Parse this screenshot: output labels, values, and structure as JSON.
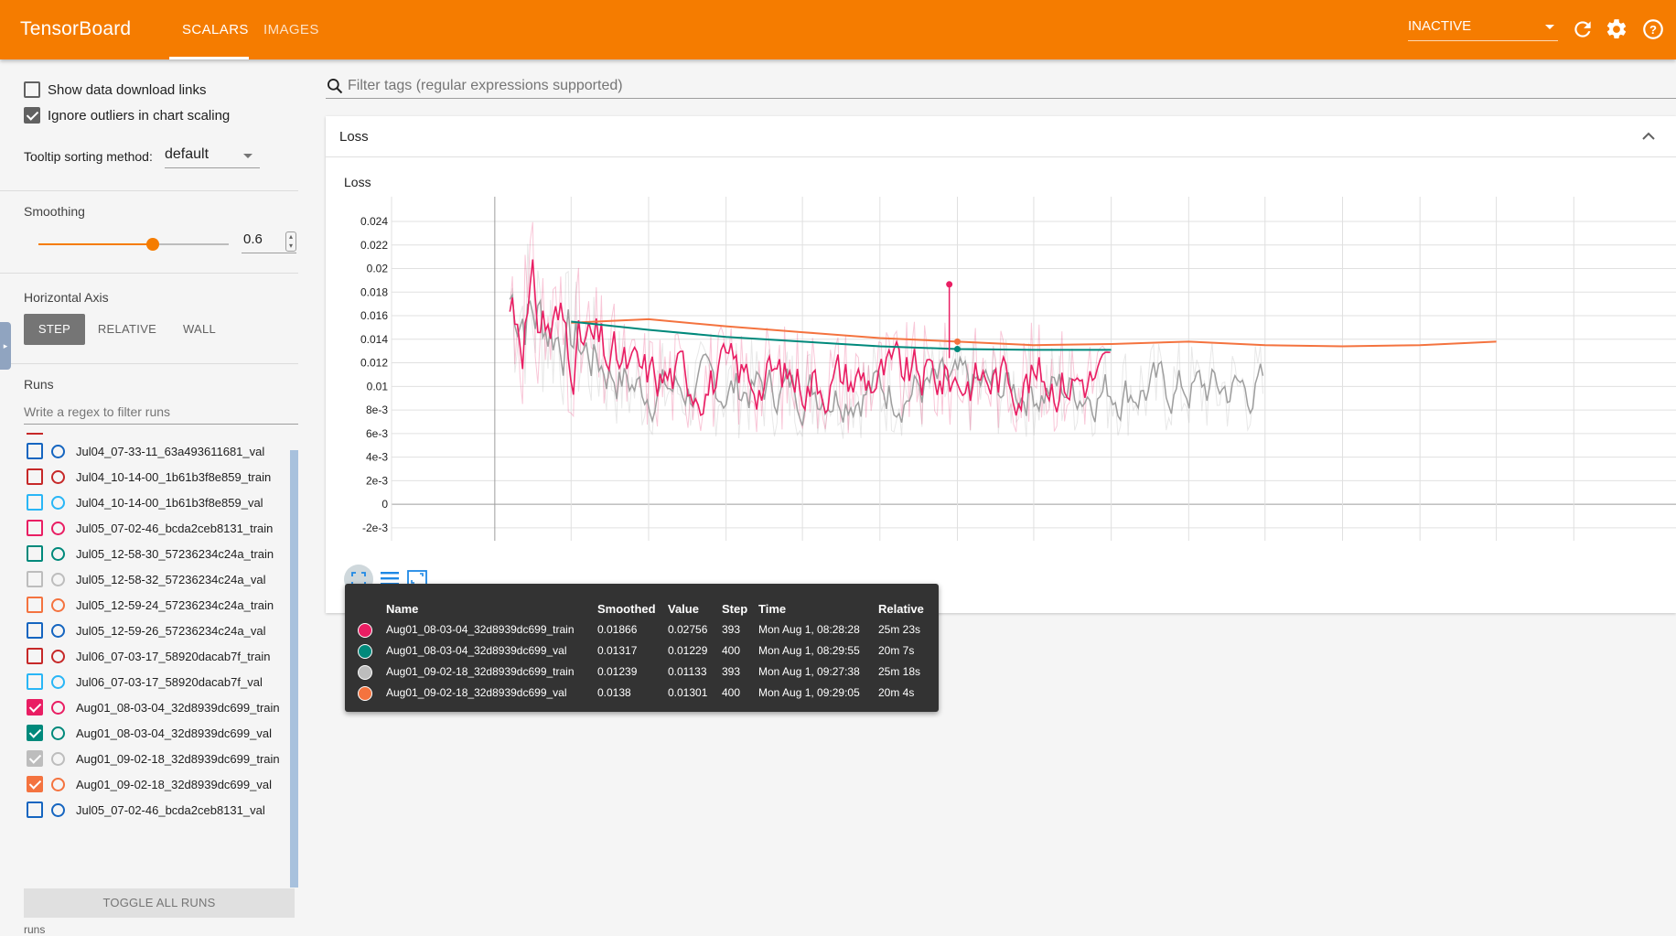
{
  "header": {
    "brand": "TensorBoard",
    "tabs": [
      "SCALARS",
      "IMAGES"
    ],
    "status": "INACTIVE",
    "accent": "#f57c00"
  },
  "sidebar": {
    "show_download_links": "Show data download links",
    "ignore_outliers": "Ignore outliers in chart scaling",
    "tooltip_sorting_label": "Tooltip sorting method:",
    "tooltip_sorting_value": "default",
    "smoothing_label": "Smoothing",
    "smoothing_value": "0.6",
    "smoothing_fraction": 0.6,
    "horizontal_axis_label": "Horizontal Axis",
    "axis_options": [
      "STEP",
      "RELATIVE",
      "WALL"
    ],
    "runs_label": "Runs",
    "run_filter_placeholder": "Write a regex to filter runs",
    "runs": [
      {
        "name": "Jul04_07-33-11_63a493611681_val",
        "checked": false,
        "color": "#1565c0"
      },
      {
        "name": "Jul04_10-14-00_1b61b3f8e859_train",
        "checked": false,
        "color": "#c62828"
      },
      {
        "name": "Jul04_10-14-00_1b61b3f8e859_val",
        "checked": false,
        "color": "#29b6f6"
      },
      {
        "name": "Jul05_07-02-46_bcda2ceb8131_train",
        "checked": false,
        "color": "#e91e63"
      },
      {
        "name": "Jul05_12-58-30_57236234c24a_train",
        "checked": false,
        "color": "#00897b"
      },
      {
        "name": "Jul05_12-58-32_57236234c24a_val",
        "checked": false,
        "color": "#bdbdbd"
      },
      {
        "name": "Jul05_12-59-24_57236234c24a_train",
        "checked": false,
        "color": "#f4733f"
      },
      {
        "name": "Jul05_12-59-26_57236234c24a_val",
        "checked": false,
        "color": "#1565c0"
      },
      {
        "name": "Jul06_07-03-17_58920dacab7f_train",
        "checked": false,
        "color": "#c62828"
      },
      {
        "name": "Jul06_07-03-17_58920dacab7f_val",
        "checked": false,
        "color": "#29b6f6"
      },
      {
        "name": "Aug01_08-03-04_32d8939dc699_train",
        "checked": true,
        "color": "#e91e63"
      },
      {
        "name": "Aug01_08-03-04_32d8939dc699_val",
        "checked": true,
        "color": "#00897b"
      },
      {
        "name": "Aug01_09-02-18_32d8939dc699_train",
        "checked": true,
        "color": "#bdbdbd"
      },
      {
        "name": "Aug01_09-02-18_32d8939dc699_val",
        "checked": true,
        "color": "#f4733f"
      },
      {
        "name": "Jul05_07-02-46_bcda2ceb8131_val",
        "checked": false,
        "color": "#1565c0"
      }
    ],
    "toggle_all": "TOGGLE ALL RUNS",
    "footer": "runs"
  },
  "main": {
    "filter_placeholder": "Filter tags (regular expressions supported)",
    "card_title": "Loss",
    "chart_title": "Loss"
  },
  "chart_data": {
    "type": "line",
    "title": "Loss",
    "y_ticks": [
      "0.024",
      "0.022",
      "0.02",
      "0.018",
      "0.016",
      "0.014",
      "0.012",
      "0.01",
      "8e-3",
      "6e-3",
      "4e-3",
      "2e-3",
      "0",
      "-2e-3"
    ],
    "ylim": [
      -0.0031,
      0.0261
    ],
    "xlim": [
      -60,
      1000
    ],
    "x_gridlines": [
      0,
      66,
      133,
      200,
      266,
      333,
      400,
      466,
      533,
      600,
      666,
      733,
      800,
      866,
      933
    ],
    "grid": true,
    "series": [
      {
        "name": "Aug01_08-03-04_32d8939dc699_train",
        "color": "#e91e63",
        "x_range": [
          13,
          533
        ],
        "smoothed_end": 0.01866
      },
      {
        "name": "Aug01_08-03-04_32d8939dc699_val",
        "color": "#00897b",
        "x": [
          66,
          133,
          200,
          266,
          333,
          400,
          466,
          533
        ],
        "y": [
          0.0155,
          0.0148,
          0.0142,
          0.0138,
          0.0134,
          0.01317,
          0.0131,
          0.0131
        ]
      },
      {
        "name": "Aug01_09-02-18_32d8939dc699_train",
        "color": "#bdbdbd",
        "x_range": [
          13,
          666
        ],
        "smoothed_end": 0.01239
      },
      {
        "name": "Aug01_09-02-18_32d8939dc699_val",
        "color": "#f4733f",
        "x": [
          66,
          133,
          200,
          266,
          333,
          400,
          466,
          533,
          600,
          666,
          733,
          800,
          866
        ],
        "y": [
          0.0154,
          0.0157,
          0.0151,
          0.0146,
          0.0141,
          0.0138,
          0.0135,
          0.0136,
          0.0138,
          0.0135,
          0.0134,
          0.0135,
          0.0138
        ]
      }
    ],
    "hover_step": 400
  },
  "tooltip": {
    "headers": [
      "Name",
      "Smoothed",
      "Value",
      "Step",
      "Time",
      "Relative"
    ],
    "rows": [
      {
        "name": "Aug01_08-03-04_32d8939dc699_train",
        "smoothed": "0.01866",
        "value": "0.02756",
        "step": "393",
        "time": "Mon Aug 1, 08:28:28",
        "relative": "25m 23s",
        "color": "#e91e63"
      },
      {
        "name": "Aug01_08-03-04_32d8939dc699_val",
        "smoothed": "0.01317",
        "value": "0.01229",
        "step": "400",
        "time": "Mon Aug 1, 08:29:55",
        "relative": "20m 7s",
        "color": "#00897b"
      },
      {
        "name": "Aug01_09-02-18_32d8939dc699_train",
        "smoothed": "0.01239",
        "value": "0.01133",
        "step": "393",
        "time": "Mon Aug 1, 09:27:38",
        "relative": "25m 18s",
        "color": "#bdbdbd"
      },
      {
        "name": "Aug01_09-02-18_32d8939dc699_val",
        "smoothed": "0.0138",
        "value": "0.01301",
        "step": "400",
        "time": "Mon Aug 1, 09:29:05",
        "relative": "20m 4s",
        "color": "#f4733f"
      }
    ]
  }
}
